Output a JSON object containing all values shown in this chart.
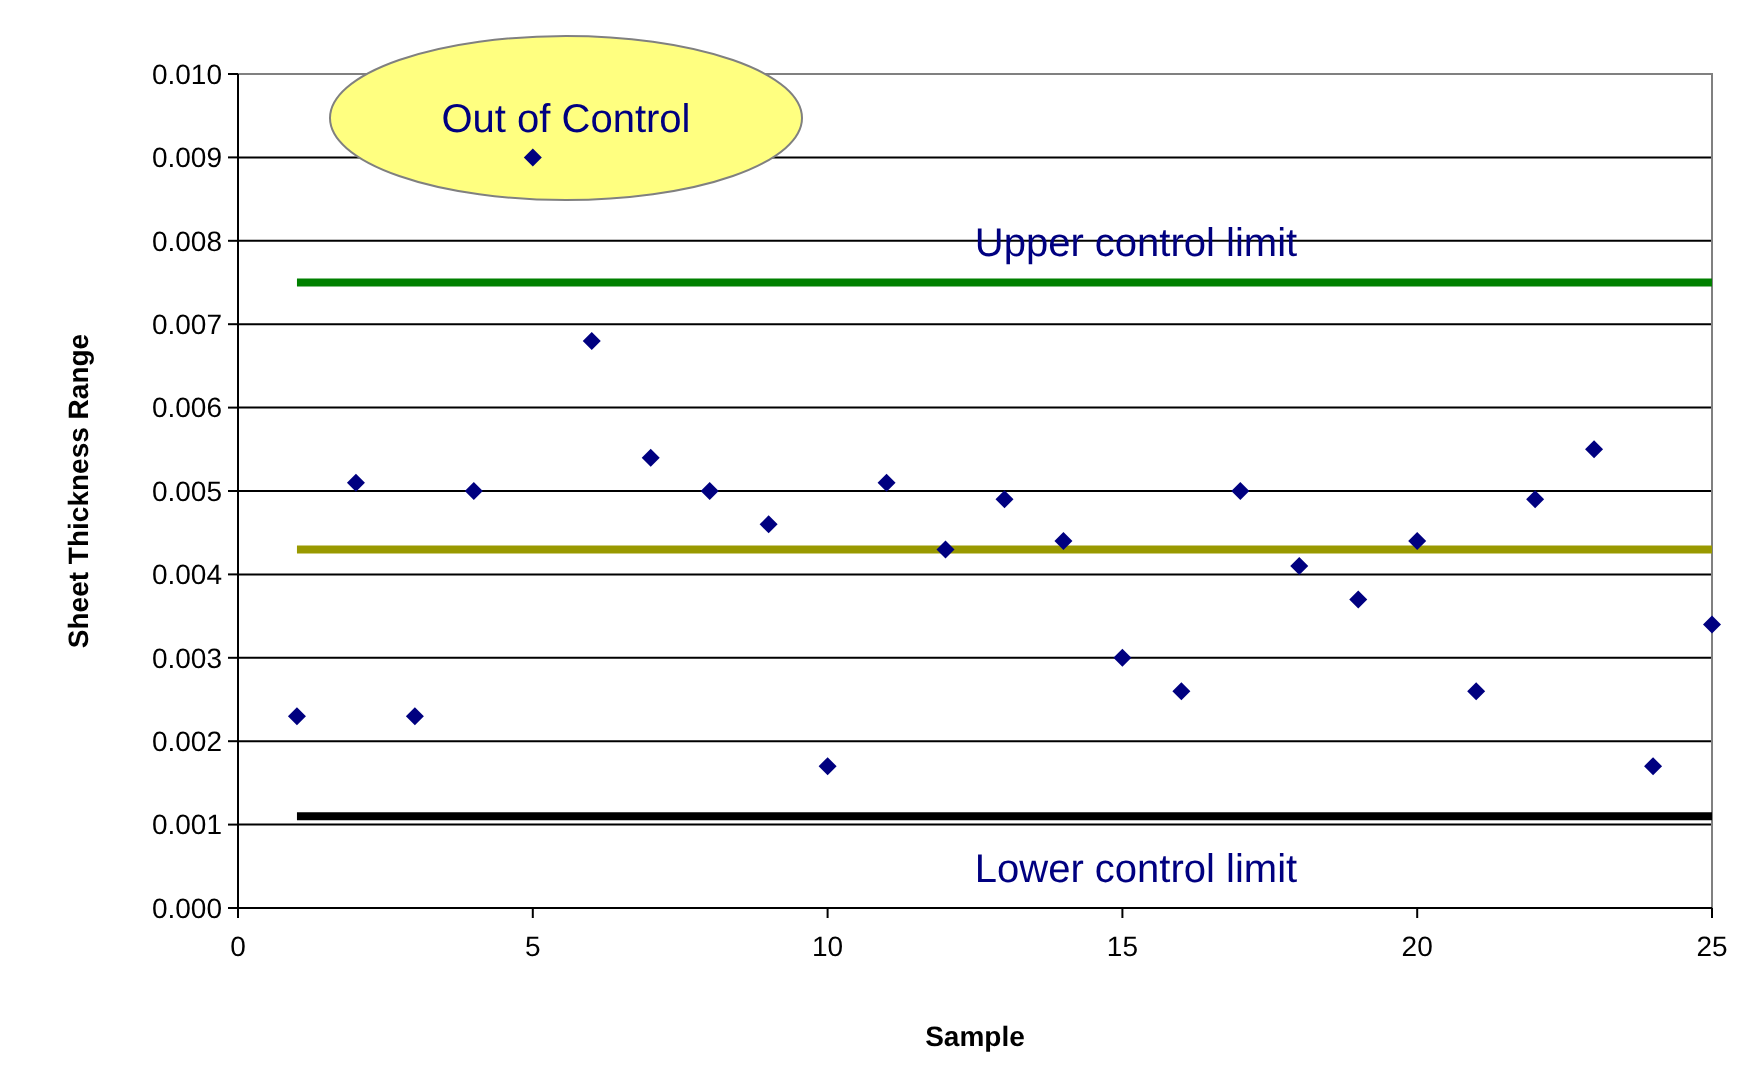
{
  "chart_data": {
    "type": "scatter",
    "xlabel": "Sample",
    "ylabel": "Sheet Thickness Range",
    "xlim": [
      0,
      25
    ],
    "xticks": [
      0,
      5,
      10,
      15,
      20,
      25
    ],
    "ylim": [
      0,
      0.01
    ],
    "yticks": [
      {
        "value": 0,
        "label": "0.000"
      },
      {
        "value": 0.001,
        "label": "0.001"
      },
      {
        "value": 0.002,
        "label": "0.002"
      },
      {
        "value": 0.003,
        "label": "0.003"
      },
      {
        "value": 0.004,
        "label": "0.004"
      },
      {
        "value": 0.005,
        "label": "0.005"
      },
      {
        "value": 0.006,
        "label": "0.006"
      },
      {
        "value": 0.007,
        "label": "0.007"
      },
      {
        "value": 0.008,
        "label": "0.008"
      },
      {
        "value": 0.009,
        "label": "0.009"
      },
      {
        "value": 0.01,
        "label": "0.010"
      }
    ],
    "grid": "y",
    "marker": "diamond",
    "series": [
      {
        "type": "line",
        "marker": "none",
        "color": "#008000",
        "x": [
          1,
          25
        ],
        "values": [
          0.0075,
          0.0075
        ]
      },
      {
        "type": "line",
        "marker": "none",
        "color": "#999900",
        "x": [
          1,
          25
        ],
        "values": [
          0.0043,
          0.0043
        ]
      },
      {
        "type": "line",
        "marker": "none",
        "color": "#000000",
        "x": [
          1,
          25
        ],
        "values": [
          0.0011,
          0.0011
        ]
      },
      {
        "color": "#000080",
        "x": [
          1,
          2,
          3,
          4,
          5,
          6,
          7,
          8,
          9,
          10,
          11,
          12,
          13,
          14,
          15,
          16,
          17,
          18,
          19,
          20,
          21,
          22,
          23,
          24,
          25
        ],
        "values": [
          0.0023,
          0.0051,
          0.0023,
          0.005,
          0.009,
          0.0068,
          0.0054,
          0.005,
          0.0046,
          0.0017,
          0.0051,
          0.0043,
          0.0049,
          0.0044,
          0.003,
          0.0026,
          0.005,
          0.0041,
          0.0037,
          0.0044,
          0.0026,
          0.0049,
          0.0055,
          0.0017,
          0.0034
        ]
      }
    ],
    "annotations": [
      "Out of Control",
      "Upper control limit",
      "Lower control limit"
    ]
  }
}
